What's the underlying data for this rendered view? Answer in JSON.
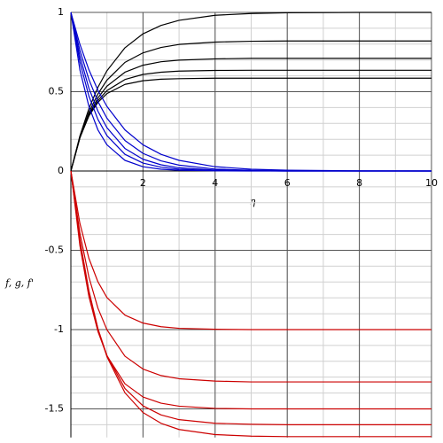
{
  "chart_data": {
    "type": "line",
    "x_label": "η",
    "y_label": "f, g, f'",
    "x": [
      0,
      0.25,
      0.5,
      0.75,
      1,
      1.5,
      2,
      2.5,
      3,
      4,
      5,
      6,
      8,
      10
    ],
    "xlim": [
      0,
      10
    ],
    "xticks": [
      2,
      4,
      6,
      8,
      10
    ],
    "ylim": [
      -1.68,
      1
    ],
    "yticks": [
      1,
      0.5,
      0,
      -0.5,
      -1,
      -1.5
    ],
    "grid": true,
    "series": [
      {
        "color": "#000000",
        "values": [
          0,
          0.221,
          0.393,
          0.528,
          0.632,
          0.777,
          0.865,
          0.918,
          0.95,
          0.982,
          0.993,
          0.998,
          1,
          1
        ]
      },
      {
        "color": "#000000",
        "values": [
          0,
          0.212,
          0.37,
          0.486,
          0.573,
          0.685,
          0.745,
          0.779,
          0.798,
          0.813,
          0.818,
          0.82,
          0.82,
          0.82
        ]
      },
      {
        "color": "#000000",
        "values": [
          0,
          0.209,
          0.357,
          0.461,
          0.535,
          0.623,
          0.667,
          0.689,
          0.699,
          0.707,
          0.71,
          0.71,
          0.71,
          0.71
        ]
      },
      {
        "color": "#000000",
        "values": [
          0,
          0.209,
          0.35,
          0.444,
          0.507,
          0.577,
          0.609,
          0.623,
          0.63,
          0.634,
          0.635,
          0.635,
          0.635,
          0.635
        ]
      },
      {
        "color": "#000000",
        "values": [
          0,
          0.212,
          0.347,
          0.433,
          0.488,
          0.546,
          0.569,
          0.579,
          0.582,
          0.585,
          0.585,
          0.585,
          0.585,
          0.585
        ]
      },
      {
        "color": "#0000cc",
        "values": [
          1,
          0.799,
          0.638,
          0.509,
          0.407,
          0.259,
          0.165,
          0.105,
          0.067,
          0.027,
          0.011,
          0.005,
          0.001,
          0
        ]
      },
      {
        "color": "#0000cc",
        "values": [
          1,
          0.76,
          0.577,
          0.438,
          0.333,
          0.192,
          0.111,
          0.064,
          0.037,
          0.012,
          0.004,
          0.001,
          0,
          0
        ]
      },
      {
        "color": "#0000cc",
        "values": [
          1,
          0.723,
          0.522,
          0.377,
          0.273,
          0.142,
          0.074,
          0.039,
          0.02,
          0.006,
          0.002,
          0,
          0,
          0
        ]
      },
      {
        "color": "#0000cc",
        "values": [
          1,
          0.687,
          0.472,
          0.325,
          0.223,
          0.105,
          0.05,
          0.024,
          0.011,
          0.002,
          0.001,
          0,
          0,
          0
        ]
      },
      {
        "color": "#0000cc",
        "values": [
          1,
          0.638,
          0.407,
          0.259,
          0.165,
          0.067,
          0.027,
          0.011,
          0.005,
          0.001,
          0,
          0,
          0,
          0
        ]
      },
      {
        "color": "#cc0000",
        "values": [
          0,
          -0.33,
          -0.551,
          -0.699,
          -0.798,
          -0.909,
          -0.959,
          -0.982,
          -0.992,
          -0.998,
          -1,
          -1,
          -1,
          -1
        ]
      },
      {
        "color": "#cc0000",
        "values": [
          0,
          -0.392,
          -0.669,
          -0.865,
          -1.001,
          -1.168,
          -1.249,
          -1.29,
          -1.31,
          -1.325,
          -1.33,
          -1.33,
          -1.33,
          -1.33
        ]
      },
      {
        "color": "#cc0000",
        "values": [
          0,
          -0.47,
          -0.792,
          -1.012,
          -1.165,
          -1.342,
          -1.425,
          -1.464,
          -1.483,
          -1.497,
          -1.5,
          -1.5,
          -1.5,
          -1.5
        ]
      },
      {
        "color": "#cc0000",
        "values": [
          0,
          -0.443,
          -0.764,
          -0.996,
          -1.163,
          -1.372,
          -1.481,
          -1.538,
          -1.568,
          -1.591,
          -1.597,
          -1.6,
          -1.6,
          -1.6
        ]
      },
      {
        "color": "#cc0000",
        "values": [
          0,
          -0.434,
          -0.755,
          -0.994,
          -1.171,
          -1.399,
          -1.523,
          -1.591,
          -1.63,
          -1.662,
          -1.672,
          -1.675,
          -1.675,
          -1.675
        ]
      }
    ]
  }
}
